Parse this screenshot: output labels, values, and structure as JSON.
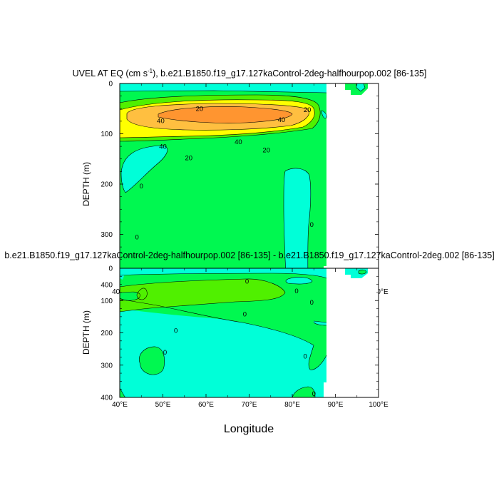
{
  "chart_data": [
    {
      "type": "contour",
      "title_main": "UVEL AT EQ (cm s",
      "title_sup": "-1",
      "title_rest": "), b.e21.B1850.f19_g17.127kaControl-2deg-halfhourpop.002 [86-135]",
      "xlabel": "",
      "ylabel": "DEPTH (m)",
      "xlim": [
        40,
        100
      ],
      "ylim": [
        0,
        400
      ],
      "y_inverted": true,
      "xticks": [
        40,
        50,
        60,
        70,
        80,
        90,
        100
      ],
      "xtick_labels": [
        "40°E",
        "50°E",
        "60°E",
        "70°E",
        "80°E",
        "90°E",
        "100°E"
      ],
      "yticks": [
        0,
        100,
        200,
        300,
        400
      ],
      "ytick_labels": [
        "0",
        "100",
        "200",
        "300",
        "400"
      ],
      "contour_levels": [
        0,
        10,
        20,
        30,
        40,
        50
      ],
      "contour_labels": [
        {
          "x": 58.5,
          "y": 50,
          "text": "20"
        },
        {
          "x": 83.5,
          "y": 52,
          "text": "20"
        },
        {
          "x": 49.5,
          "y": 74,
          "text": "40"
        },
        {
          "x": 77.5,
          "y": 72,
          "text": "40"
        },
        {
          "x": 50,
          "y": 125,
          "text": "40"
        },
        {
          "x": 67.5,
          "y": 116,
          "text": "40"
        },
        {
          "x": 56,
          "y": 148,
          "text": "20"
        },
        {
          "x": 74,
          "y": 132,
          "text": "20"
        },
        {
          "x": 45,
          "y": 204,
          "text": "0"
        },
        {
          "x": 44,
          "y": 305,
          "text": "0"
        },
        {
          "x": 84.5,
          "y": 280,
          "text": "0"
        }
      ]
    },
    {
      "type": "contour",
      "title": "b.e21.B1850.f19_g17.127kaControl-2deg-halfhourpop.002 [86-135] - b.e21.B1850.f19_g17.127kaControl-2deg.002 [86-135]",
      "xlabel": "Longitude",
      "ylabel": "DEPTH (m)",
      "xlim": [
        40,
        100
      ],
      "ylim": [
        0,
        400
      ],
      "y_inverted": true,
      "xticks": [
        40,
        50,
        60,
        70,
        80,
        90,
        100
      ],
      "xtick_labels": [
        "40°E",
        "50°E",
        "60°E",
        "70°E",
        "80°E",
        "90°E",
        "100°E"
      ],
      "yticks": [
        0,
        100,
        200,
        300,
        400
      ],
      "ytick_labels": [
        "0",
        "100",
        "200",
        "300",
        "400"
      ],
      "contour_labels": [
        {
          "x": 69.5,
          "y": 40,
          "text": "0"
        },
        {
          "x": 81,
          "y": 70,
          "text": "0"
        },
        {
          "x": 84.5,
          "y": 105,
          "text": "0"
        },
        {
          "x": 69,
          "y": 142,
          "text": "0"
        },
        {
          "x": 53,
          "y": 192,
          "text": "0"
        },
        {
          "x": 50.5,
          "y": 260,
          "text": "0"
        },
        {
          "x": 83,
          "y": 272,
          "text": "0"
        },
        {
          "x": 85,
          "y": 388,
          "text": "0"
        }
      ]
    }
  ],
  "colors": {
    "cyan": "#00ffd8",
    "green": "#00f850",
    "lightgreen": "#50f000",
    "yellow": "#ffff00",
    "lightorange": "#ffbf40",
    "orange": "#ff9530",
    "white": "#ffffff",
    "line": "#000000"
  }
}
